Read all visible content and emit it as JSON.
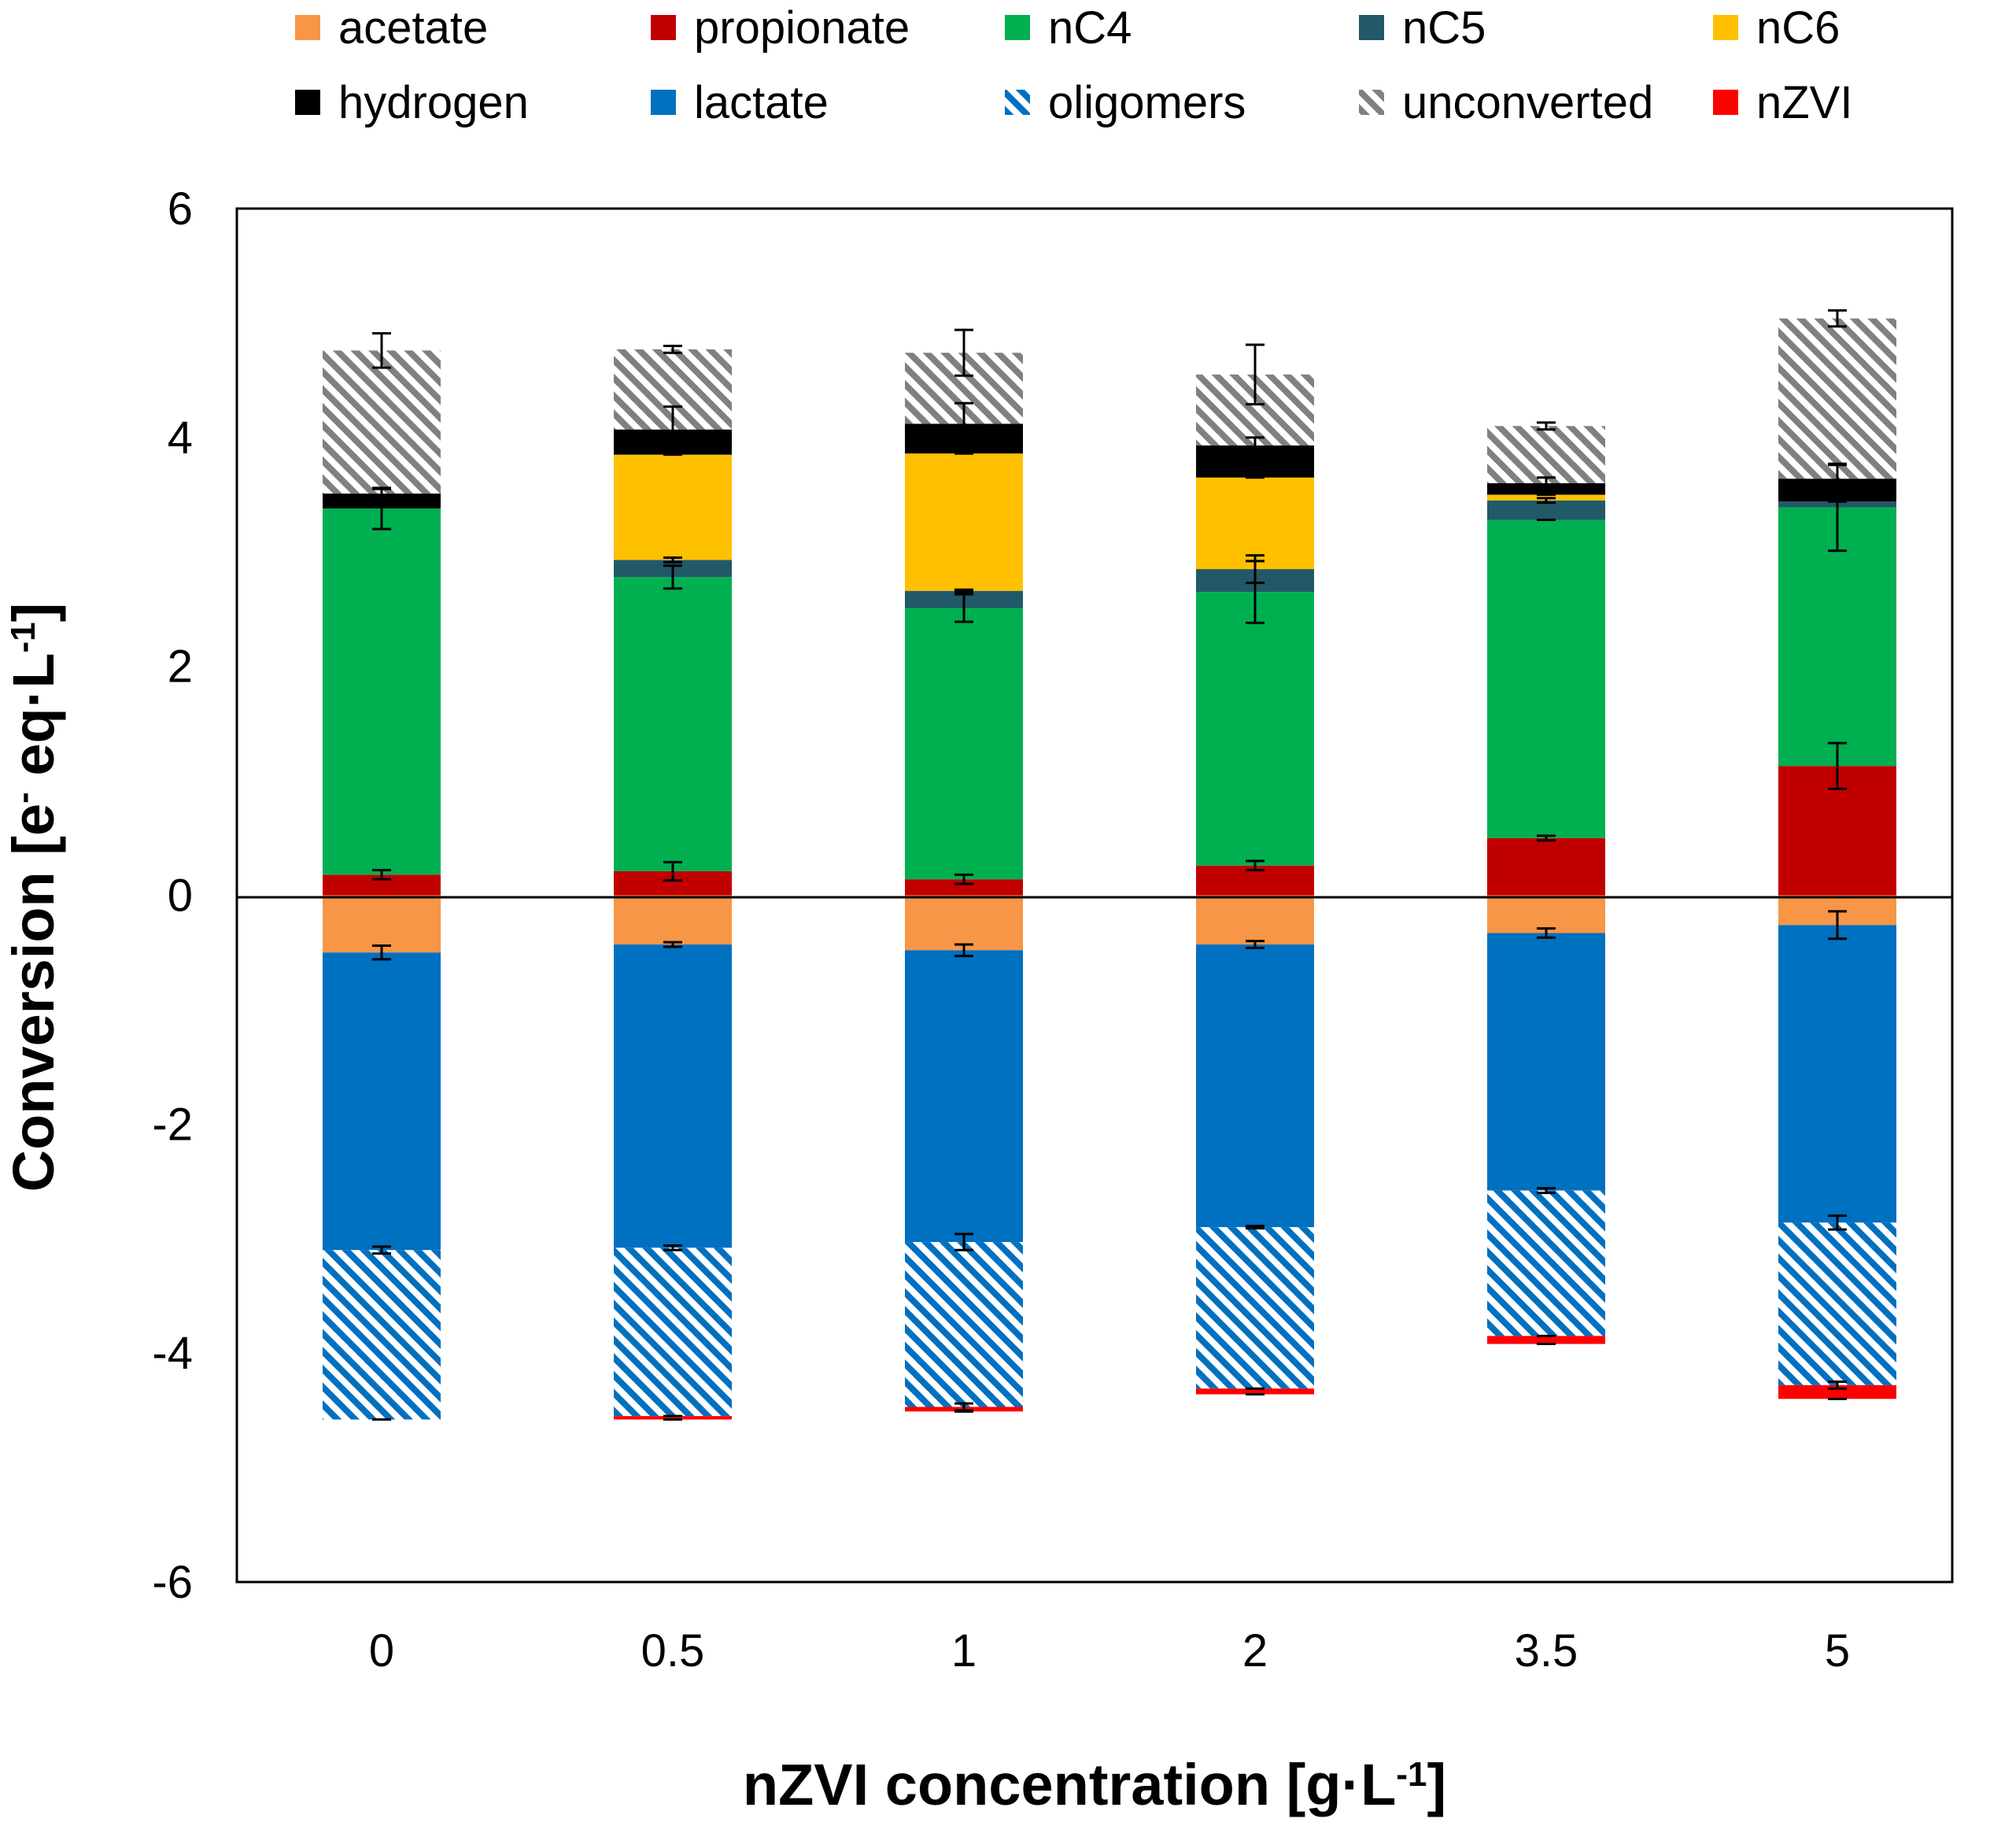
{
  "chart_data": {
    "type": "stacked-bar",
    "title": "",
    "xlabel": "nZVI concentration [g·L",
    "xlabel_sup": "-1",
    "xlabel_end": "]",
    "ylabel": "Conversion [e",
    "ylabel_sup1": "-",
    "ylabel_mid": " eq·L",
    "ylabel_sup2": "-1",
    "ylabel_end": "]",
    "ylim": [
      -6,
      6
    ],
    "yticks": [
      "6",
      "4",
      "2",
      "0",
      "-2",
      "-4",
      "-6"
    ],
    "categories": [
      "0",
      "0.5",
      "1",
      "2",
      "3.5",
      "5"
    ],
    "legend": {
      "placement": "top",
      "entries": [
        {
          "key": "acetate",
          "label": "acetate"
        },
        {
          "key": "propionate",
          "label": "propionate"
        },
        {
          "key": "nC4",
          "label": "nC4"
        },
        {
          "key": "nC5",
          "label": "nC5"
        },
        {
          "key": "nC6",
          "label": "nC6"
        },
        {
          "key": "hydrogen",
          "label": "hydrogen"
        },
        {
          "key": "lactate",
          "label": "lactate"
        },
        {
          "key": "oligomers",
          "label": "oligomers"
        },
        {
          "key": "unconverted",
          "label": "unconverted"
        },
        {
          "key": "nZVI",
          "label": "nZVI"
        }
      ]
    },
    "series": [
      {
        "key": "acetate",
        "name": "acetate",
        "color": "#f79646",
        "pattern": "solid",
        "sign": "negative",
        "values": [
          -0.5,
          -0.43,
          -0.48,
          -0.43,
          -0.33,
          -0.26
        ],
        "errors": [
          0.06,
          0.02,
          0.05,
          0.03,
          0.04,
          0.12
        ]
      },
      {
        "key": "lactate",
        "name": "lactate",
        "color": "#0070c0",
        "pattern": "solid",
        "sign": "negative",
        "values": [
          -2.6,
          -2.65,
          -2.55,
          -2.47,
          -2.25,
          -2.6
        ],
        "errors": [
          0.03,
          0.02,
          0.07,
          0.01,
          0.02,
          0.06
        ]
      },
      {
        "key": "oligomers",
        "name": "oligomers",
        "color": "#0070c0",
        "pattern": "hatch-blue",
        "sign": "negative",
        "values": [
          -1.48,
          -1.47,
          -1.44,
          -1.41,
          -1.27,
          -1.42
        ],
        "errors": [
          0.0,
          0.0,
          0.03,
          0.0,
          0.0,
          0.03
        ]
      },
      {
        "key": "nZVI",
        "name": "nZVI",
        "color": "#ff0000",
        "pattern": "solid",
        "sign": "negative",
        "values": [
          0.0,
          -0.03,
          -0.04,
          -0.05,
          -0.07,
          -0.12
        ],
        "errors": [
          0.0,
          0.0,
          0.0,
          0.0,
          0.0,
          0.0
        ]
      },
      {
        "key": "propionate",
        "name": "propionate",
        "color": "#c00000",
        "pattern": "solid",
        "sign": "positive",
        "values": [
          0.18,
          0.21,
          0.14,
          0.26,
          0.5,
          1.13
        ],
        "errors": [
          0.04,
          0.08,
          0.04,
          0.04,
          0.02,
          0.2
        ]
      },
      {
        "key": "nC4",
        "name": "nC4",
        "color": "#00b050",
        "pattern": "solid",
        "sign": "positive",
        "values": [
          3.2,
          2.57,
          2.37,
          2.39,
          2.78,
          2.26
        ],
        "errors": [
          0.18,
          0.1,
          0.12,
          0.27,
          0.0,
          0.38
        ]
      },
      {
        "key": "nC5",
        "name": "nC5",
        "color": "#215968",
        "pattern": "solid",
        "sign": "positive",
        "values": [
          0.0,
          0.15,
          0.15,
          0.2,
          0.17,
          0.05
        ],
        "errors": [
          0.0,
          0.02,
          0.01,
          0.12,
          0.02,
          0.0
        ]
      },
      {
        "key": "nC6",
        "name": "nC6",
        "color": "#ffc000",
        "pattern": "solid",
        "sign": "positive",
        "values": [
          0.0,
          0.92,
          1.2,
          0.8,
          0.05,
          0.0
        ],
        "errors": [
          0.0,
          0.0,
          0.0,
          0.0,
          0.0,
          0.0
        ]
      },
      {
        "key": "hydrogen",
        "name": "hydrogen",
        "color": "#000000",
        "pattern": "solid",
        "sign": "positive",
        "values": [
          0.13,
          0.22,
          0.26,
          0.28,
          0.1,
          0.2
        ],
        "errors": [
          0.04,
          0.2,
          0.18,
          0.07,
          0.05,
          0.12
        ]
      },
      {
        "key": "unconverted",
        "name": "unconverted",
        "color": "#808080",
        "pattern": "hatch-gray",
        "sign": "positive",
        "values": [
          1.25,
          0.7,
          0.62,
          0.62,
          0.5,
          1.4
        ],
        "errors": [
          0.15,
          0.03,
          0.2,
          0.26,
          0.03,
          0.07
        ]
      }
    ]
  }
}
